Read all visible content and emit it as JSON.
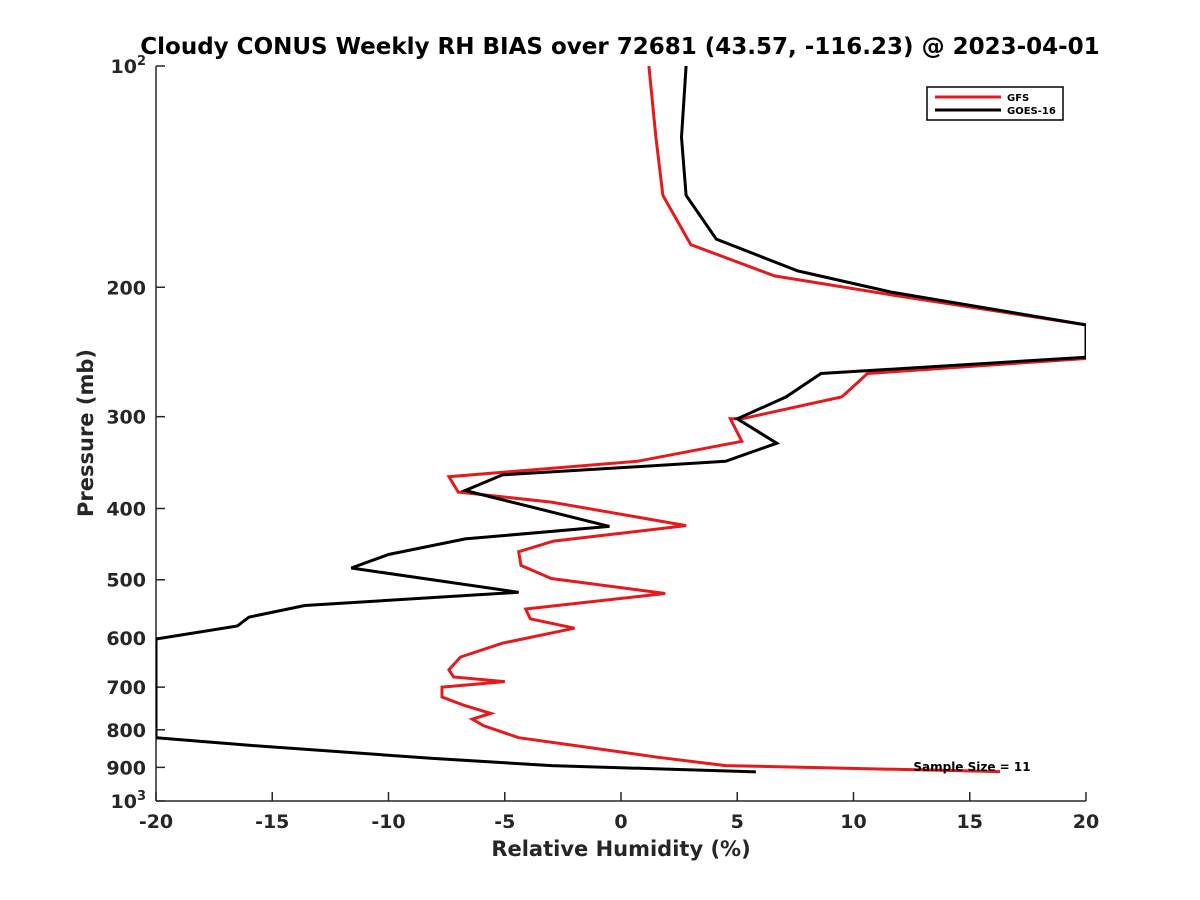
{
  "chart_data": {
    "type": "line",
    "title": "Cloudy CONUS Weekly RH BIAS over 72681 (43.57, -116.23) @ 2023-04-01",
    "xlabel": "Relative Humidity (%)",
    "ylabel": "Pressure (mb)",
    "xlim": [
      -20,
      20
    ],
    "ylim": [
      100,
      1000
    ],
    "y_scale": "log",
    "y_reversed": true,
    "x_ticks": [
      {
        "value": -20,
        "label": "-20"
      },
      {
        "value": -15,
        "label": "-15"
      },
      {
        "value": -10,
        "label": "-10"
      },
      {
        "value": -5,
        "label": "-5"
      },
      {
        "value": 0,
        "label": "0"
      },
      {
        "value": 5,
        "label": "5"
      },
      {
        "value": 10,
        "label": "10"
      },
      {
        "value": 15,
        "label": "15"
      },
      {
        "value": 20,
        "label": "20"
      }
    ],
    "y_ticks": [
      {
        "value": 100,
        "base": "10",
        "exp": "2"
      },
      {
        "value": 200,
        "base": "200",
        "exp": ""
      },
      {
        "value": 300,
        "base": "300",
        "exp": ""
      },
      {
        "value": 400,
        "base": "400",
        "exp": ""
      },
      {
        "value": 500,
        "base": "500",
        "exp": ""
      },
      {
        "value": 600,
        "base": "600",
        "exp": ""
      },
      {
        "value": 700,
        "base": "700",
        "exp": ""
      },
      {
        "value": 800,
        "base": "800",
        "exp": ""
      },
      {
        "value": 900,
        "base": "900",
        "exp": ""
      },
      {
        "value": 1000,
        "base": "10",
        "exp": "3"
      }
    ],
    "grid": false,
    "legend_position": "top-right",
    "annotation": "Sample Size = 11",
    "series": [
      {
        "name": "GFS",
        "color": "#e41a1c",
        "points": [
          [
            1.2,
            100
          ],
          [
            1.5,
            125
          ],
          [
            1.8,
            150
          ],
          [
            3.0,
            175
          ],
          [
            6.6,
            193
          ],
          [
            11.7,
            205
          ],
          [
            20.0,
            225
          ],
          [
            20.0,
            250
          ],
          [
            10.6,
            262
          ],
          [
            9.5,
            282
          ],
          [
            5.2,
            302
          ],
          [
            4.7,
            302
          ],
          [
            5.2,
            324
          ],
          [
            0.7,
            345
          ],
          [
            -7.4,
            362
          ],
          [
            -7.0,
            380
          ],
          [
            -3.0,
            392
          ],
          [
            2.8,
            422
          ],
          [
            -2.9,
            443
          ],
          [
            -4.4,
            458
          ],
          [
            -4.3,
            478
          ],
          [
            -3.0,
            498
          ],
          [
            1.9,
            522
          ],
          [
            -4.1,
            548
          ],
          [
            -3.9,
            565
          ],
          [
            -2.0,
            582
          ],
          [
            -5.1,
            610
          ],
          [
            -6.9,
            637
          ],
          [
            -7.4,
            663
          ],
          [
            -7.2,
            678
          ],
          [
            -5.0,
            688
          ],
          [
            -7.7,
            700
          ],
          [
            -7.7,
            722
          ],
          [
            -6.8,
            740
          ],
          [
            -5.6,
            760
          ],
          [
            -6.4,
            774
          ],
          [
            -5.9,
            790
          ],
          [
            -4.4,
            820
          ],
          [
            -1.8,
            842
          ],
          [
            1.6,
            872
          ],
          [
            4.5,
            895
          ],
          [
            16.3,
            912
          ]
        ]
      },
      {
        "name": "GOES-16",
        "color": "#000000",
        "points": [
          [
            2.8,
            100
          ],
          [
            2.6,
            125
          ],
          [
            2.8,
            150
          ],
          [
            4.1,
            172
          ],
          [
            7.6,
            190
          ],
          [
            11.6,
            203
          ],
          [
            20.0,
            225
          ],
          [
            20.0,
            249
          ],
          [
            8.6,
            262
          ],
          [
            7.1,
            282
          ],
          [
            5.0,
            302
          ],
          [
            6.7,
            326
          ],
          [
            4.5,
            345
          ],
          [
            -5.1,
            360
          ],
          [
            -6.7,
            378
          ],
          [
            -0.5,
            423
          ],
          [
            -6.7,
            440
          ],
          [
            -10.0,
            462
          ],
          [
            -11.6,
            482
          ],
          [
            -4.4,
            520
          ],
          [
            -13.6,
            542
          ],
          [
            -16.0,
            562
          ],
          [
            -16.5,
            578
          ],
          [
            -20.0,
            602
          ],
          [
            -20.0,
            820
          ],
          [
            -16.0,
            840
          ],
          [
            -8.1,
            875
          ],
          [
            -3.0,
            895
          ],
          [
            5.8,
            913
          ]
        ]
      }
    ]
  }
}
